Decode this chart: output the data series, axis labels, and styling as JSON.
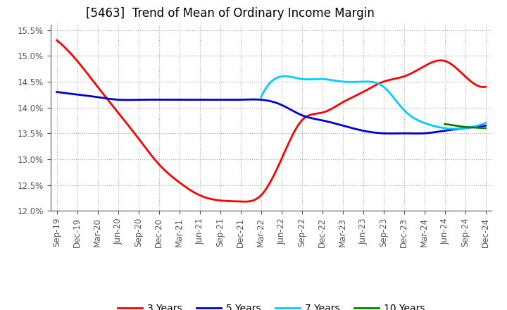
{
  "title": "[5463]  Trend of Mean of Ordinary Income Margin",
  "ylim": [
    0.12,
    0.156
  ],
  "yticks": [
    0.12,
    0.125,
    0.13,
    0.135,
    0.14,
    0.145,
    0.15,
    0.155
  ],
  "x_labels": [
    "Sep-19",
    "Dec-19",
    "Mar-20",
    "Jun-20",
    "Sep-20",
    "Dec-20",
    "Mar-21",
    "Jun-21",
    "Sep-21",
    "Dec-21",
    "Mar-22",
    "Jun-22",
    "Sep-22",
    "Dec-22",
    "Mar-23",
    "Jun-23",
    "Sep-23",
    "Dec-23",
    "Mar-24",
    "Jun-24",
    "Sep-24",
    "Dec-24"
  ],
  "series": {
    "3 Years": {
      "color": "#ff0000",
      "points": [
        [
          0,
          0.153
        ],
        [
          1,
          0.149
        ],
        [
          2,
          0.144
        ],
        [
          3,
          0.139
        ],
        [
          4,
          0.134
        ],
        [
          5,
          0.129
        ],
        [
          6,
          0.1255
        ],
        [
          7,
          0.123
        ],
        [
          8,
          0.122
        ],
        [
          9,
          0.1218
        ],
        [
          10,
          0.123
        ],
        [
          11,
          0.13
        ],
        [
          12,
          0.1375
        ],
        [
          13,
          0.139
        ],
        [
          14,
          0.141
        ],
        [
          15,
          0.143
        ],
        [
          16,
          0.145
        ],
        [
          17,
          0.146
        ],
        [
          18,
          0.148
        ],
        [
          19,
          0.149
        ],
        [
          20,
          0.146
        ],
        [
          21,
          0.144
        ]
      ]
    },
    "5 Years": {
      "color": "#0000cc",
      "points": [
        [
          0,
          0.143
        ],
        [
          1,
          0.1425
        ],
        [
          2,
          0.142
        ],
        [
          3,
          0.1415
        ],
        [
          4,
          0.1415
        ],
        [
          5,
          0.1415
        ],
        [
          6,
          0.1415
        ],
        [
          7,
          0.1415
        ],
        [
          8,
          0.1415
        ],
        [
          9,
          0.1415
        ],
        [
          10,
          0.1415
        ],
        [
          11,
          0.1405
        ],
        [
          12,
          0.1385
        ],
        [
          13,
          0.1375
        ],
        [
          14,
          0.1365
        ],
        [
          15,
          0.1355
        ],
        [
          16,
          0.135
        ],
        [
          17,
          0.135
        ],
        [
          18,
          0.135
        ],
        [
          19,
          0.1355
        ],
        [
          20,
          0.136
        ],
        [
          21,
          0.1365
        ]
      ]
    },
    "7 Years": {
      "color": "#00ccff",
      "points": [
        [
          10,
          0.142
        ],
        [
          11,
          0.146
        ],
        [
          12,
          0.1455
        ],
        [
          13,
          0.1455
        ],
        [
          14,
          0.145
        ],
        [
          15,
          0.145
        ],
        [
          16,
          0.144
        ],
        [
          17,
          0.1395
        ],
        [
          18,
          0.137
        ],
        [
          19,
          0.136
        ],
        [
          20,
          0.136
        ],
        [
          21,
          0.137
        ]
      ]
    },
    "10 Years": {
      "color": "#008000",
      "points": [
        [
          19,
          0.1368
        ],
        [
          20,
          0.1362
        ],
        [
          21,
          0.136
        ]
      ]
    }
  },
  "legend_order": [
    "3 Years",
    "5 Years",
    "7 Years",
    "10 Years"
  ],
  "background_color": "#ffffff",
  "grid_color": "#aaaaaa",
  "title_fontsize": 12,
  "tick_fontsize": 8.5,
  "legend_fontsize": 10
}
